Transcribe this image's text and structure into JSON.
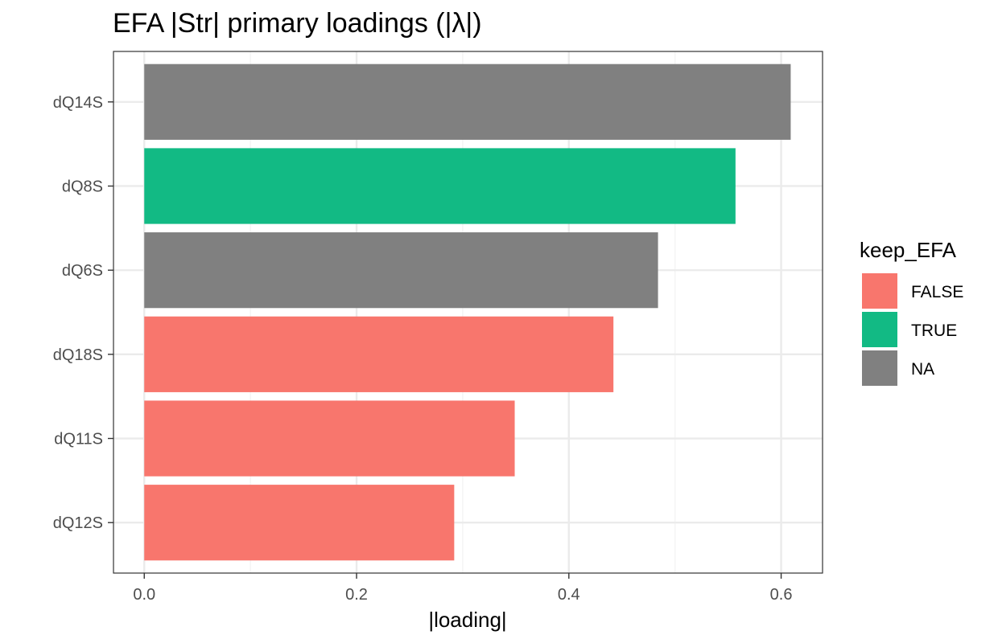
{
  "chart_data": {
    "type": "bar",
    "orientation": "horizontal",
    "title": "EFA |Str| primary loadings (|λ|)",
    "xlabel": "|loading|",
    "ylabel": "",
    "xlim": [
      -0.029,
      0.639
    ],
    "x_ticks": [
      0.0,
      0.2,
      0.4,
      0.6
    ],
    "x_tick_labels": [
      "0.0",
      "0.2",
      "0.4",
      "0.6"
    ],
    "grid": true,
    "categories": [
      "dQ14S",
      "dQ8S",
      "dQ6S",
      "dQ18S",
      "dQ11S",
      "dQ12S"
    ],
    "values": [
      0.609,
      0.557,
      0.484,
      0.442,
      0.349,
      0.292
    ],
    "groups": [
      "NA",
      "TRUE",
      "NA",
      "FALSE",
      "FALSE",
      "FALSE"
    ],
    "legend": {
      "title": "keep_EFA",
      "placement": "right",
      "entries": [
        {
          "label": "FALSE",
          "color": "#F8766D"
        },
        {
          "label": "TRUE",
          "color": "#12BA84"
        },
        {
          "label": "NA",
          "color": "#808080"
        }
      ]
    },
    "colors": {
      "FALSE": "#F8766D",
      "TRUE": "#12BA84",
      "NA": "#808080",
      "grid_major": "#EBEBEB",
      "grid_minor": "#F4F4F4",
      "panel_border": "#333333",
      "tick_text": "#4D4D4D"
    }
  }
}
